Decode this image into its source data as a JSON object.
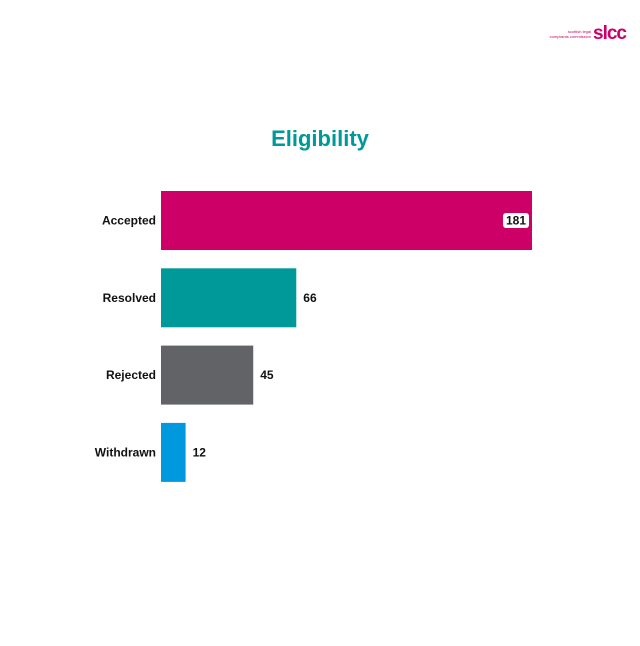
{
  "logo": {
    "line1": "scottish legal",
    "line2": "complaints commission",
    "mark": "slcc",
    "color": "#cc0066"
  },
  "chart_data": {
    "type": "bar",
    "orientation": "horizontal",
    "title": "Eligibility",
    "categories": [
      "Accepted",
      "Resolved",
      "Rejected",
      "Withdrawn"
    ],
    "values": [
      181,
      66,
      45,
      12
    ],
    "colors": [
      "#cc0066",
      "#009999",
      "#616366",
      "#0099dd"
    ],
    "xlabel": "",
    "ylabel": "",
    "xlim": [
      0,
      181
    ],
    "grid": false,
    "legend": "none"
  }
}
